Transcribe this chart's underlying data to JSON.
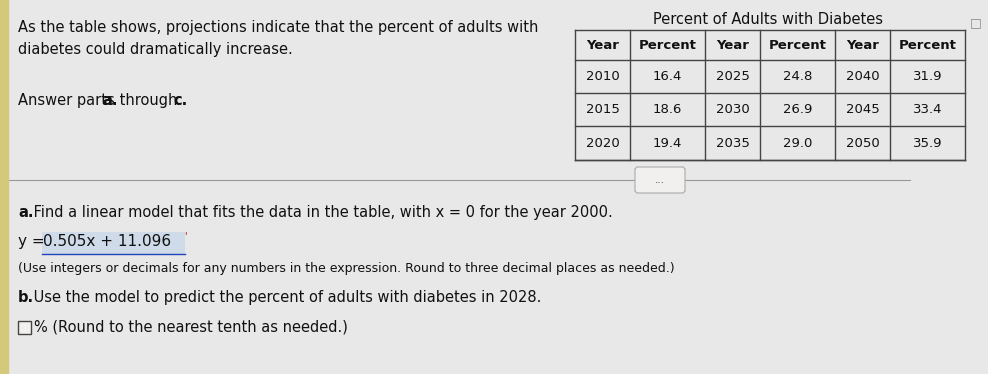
{
  "bg_color": "#e8e8e8",
  "panel_color": "#f2f0ee",
  "top_left_text_line1": "As the table shows, projections indicate that the percent of adults with",
  "top_left_text_line2": "diabetes could dramatically increase.",
  "answer_parts_label": "Answer parts ",
  "answer_parts_a": "a.",
  "answer_parts_mid": " through ",
  "answer_parts_c": "c.",
  "table_title": "Percent of Adults with Diabetes",
  "table_headers": [
    "Year",
    "Percent",
    "Year",
    "Percent",
    "Year",
    "Percent"
  ],
  "table_rows": [
    [
      "2010",
      "16.4",
      "2025",
      "24.8",
      "2040",
      "31.9"
    ],
    [
      "2015",
      "18.6",
      "2030",
      "26.9",
      "2045",
      "33.4"
    ],
    [
      "2020",
      "19.4",
      "2035",
      "29.0",
      "2050",
      "35.9"
    ]
  ],
  "divider_dots": "...",
  "part_a_intro": "a.",
  "part_a_text": " Find a linear model that fits the data in the table, with x = 0 for the year 2000.",
  "part_a_label": "y = ",
  "part_a_answer": "0.505x + 11.096",
  "part_a_note": "(Use integers or decimals for any numbers in the expression. Round to three decimal places as needed.)",
  "part_b_intro": "b.",
  "part_b_text": " Use the model to predict the percent of adults with diabetes in 2028.",
  "part_b_checkbox_label": "% (Round to the nearest tenth as needed.)",
  "highlight_color": "#b8cfe8",
  "underline_color": "#2244bb",
  "text_color": "#111111",
  "table_line_color": "#444444",
  "divider_line_color": "#999999",
  "note_underline_color": "#2244bb",
  "corner_icon_color": "#888888"
}
